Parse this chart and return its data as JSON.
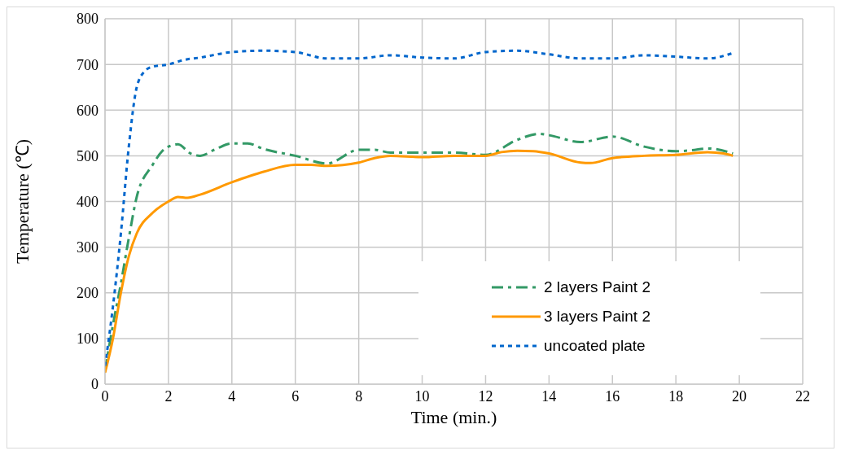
{
  "chart_data": {
    "type": "line",
    "xlabel": "Time (min.)",
    "ylabel": "Temperature (℃)",
    "xlim": [
      0,
      22
    ],
    "xticks": [
      0,
      2,
      4,
      6,
      8,
      10,
      12,
      14,
      16,
      18,
      20,
      22
    ],
    "ylim": [
      0,
      800
    ],
    "yticks": [
      0,
      100,
      200,
      300,
      400,
      500,
      600,
      700,
      800
    ],
    "grid": true,
    "legend": "bottom right",
    "marker": "none",
    "series": [
      {
        "name": "2 layers Paint 2",
        "color": "#339966",
        "line_style": "dashed",
        "x": [
          0,
          0.25,
          0.5,
          0.75,
          1,
          1.5,
          1.8,
          2,
          2.3,
          2.7,
          3,
          3.5,
          4,
          4.5,
          5,
          6,
          7,
          8,
          8.5,
          9,
          10,
          11,
          12,
          13,
          13.7,
          14,
          15,
          16,
          17,
          18,
          18.5,
          19,
          19.8
        ],
        "values": [
          30,
          130,
          220,
          320,
          410,
          480,
          510,
          520,
          525,
          505,
          500,
          515,
          527,
          527,
          515,
          500,
          483,
          513,
          513,
          507,
          507,
          507,
          502,
          535,
          548,
          545,
          530,
          542,
          520,
          510,
          512,
          516,
          505
        ]
      },
      {
        "name": "3 layers Paint 2",
        "color": "#ff9900",
        "line_style": "solid",
        "x": [
          0,
          0.25,
          0.5,
          0.75,
          1,
          1.5,
          2,
          2.3,
          2.6,
          3,
          4,
          5,
          6,
          6.5,
          7,
          8,
          8.5,
          9,
          10,
          11,
          12,
          12.5,
          13,
          13.5,
          14,
          15,
          15.3,
          16,
          17,
          18,
          19,
          19.5,
          19.8
        ],
        "values": [
          25,
          100,
          200,
          280,
          330,
          375,
          400,
          410,
          408,
          415,
          442,
          465,
          480,
          480,
          478,
          485,
          495,
          500,
          497,
          500,
          500,
          508,
          511,
          510,
          505,
          485,
          484,
          495,
          500,
          502,
          508,
          505,
          500
        ]
      },
      {
        "name": "uncoated plate",
        "color": "#0066cc",
        "line_style": "dotted",
        "x": [
          0,
          0.25,
          0.5,
          0.75,
          1,
          1.25,
          1.5,
          2,
          2.5,
          3,
          4,
          5,
          6,
          7,
          8,
          9,
          10,
          11,
          12,
          13,
          14,
          15,
          16,
          17,
          18,
          19,
          19.8
        ],
        "values": [
          40,
          170,
          330,
          520,
          650,
          685,
          695,
          700,
          710,
          715,
          727,
          730,
          727,
          713,
          713,
          720,
          715,
          713,
          727,
          730,
          722,
          713,
          713,
          720,
          717,
          713,
          725
        ]
      }
    ]
  }
}
